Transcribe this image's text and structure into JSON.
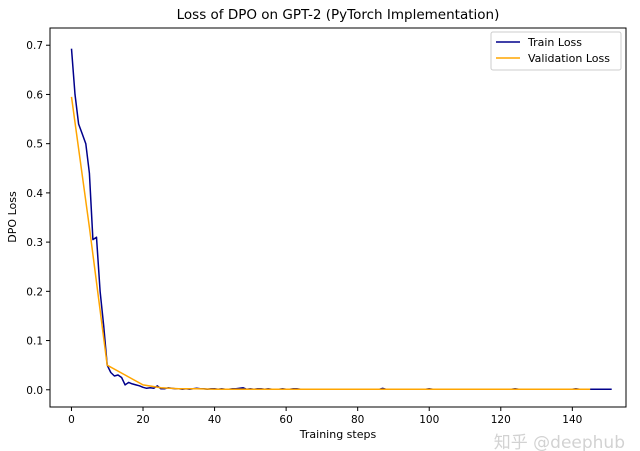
{
  "chart_data": {
    "type": "line",
    "title": "Loss of DPO on GPT-2 (PyTorch Implementation)",
    "xlabel": "Training steps",
    "ylabel": "DPO Loss",
    "xlim": [
      -6,
      155
    ],
    "ylim": [
      -0.035,
      0.735
    ],
    "xticks": [
      0,
      20,
      40,
      60,
      80,
      100,
      120,
      140
    ],
    "yticks": [
      0.0,
      0.1,
      0.2,
      0.3,
      0.4,
      0.5,
      0.6,
      0.7
    ],
    "xtick_labels": [
      "0",
      "20",
      "40",
      "60",
      "80",
      "100",
      "120",
      "140"
    ],
    "ytick_labels": [
      "0.0",
      "0.1",
      "0.2",
      "0.3",
      "0.4",
      "0.5",
      "0.6",
      "0.7"
    ],
    "grid": false,
    "legend": "top-right",
    "series": [
      {
        "name": "Train Loss",
        "color": "#00008b",
        "x_start": 0,
        "x_step": 1,
        "values": [
          0.693,
          0.6,
          0.54,
          0.52,
          0.5,
          0.44,
          0.305,
          0.31,
          0.2,
          0.13,
          0.05,
          0.035,
          0.028,
          0.03,
          0.025,
          0.01,
          0.015,
          0.012,
          0.01,
          0.008,
          0.005,
          0.003,
          0.004,
          0.003,
          0.008,
          0.002,
          0.002,
          0.004,
          0.003,
          0.002,
          0.002,
          0.001,
          0.002,
          0.001,
          0.002,
          0.003,
          0.002,
          0.002,
          0.001,
          0.002,
          0.002,
          0.001,
          0.002,
          0.001,
          0.001,
          0.002,
          0.002,
          0.003,
          0.004,
          0.001,
          0.002,
          0.001,
          0.002,
          0.002,
          0.001,
          0.002,
          0.001,
          0.001,
          0.001,
          0.002,
          0.001,
          0.001,
          0.002,
          0.002,
          0.001,
          0.001,
          0.001,
          0.001,
          0.001,
          0.001,
          0.001,
          0.001,
          0.001,
          0.001,
          0.001,
          0.001,
          0.001,
          0.001,
          0.001,
          0.001,
          0.001,
          0.001,
          0.001,
          0.001,
          0.001,
          0.001,
          0.001,
          0.003,
          0.001,
          0.001,
          0.001,
          0.001,
          0.001,
          0.001,
          0.001,
          0.001,
          0.001,
          0.001,
          0.001,
          0.001,
          0.002,
          0.001,
          0.001,
          0.001,
          0.001,
          0.001,
          0.001,
          0.001,
          0.001,
          0.001,
          0.001,
          0.001,
          0.001,
          0.001,
          0.001,
          0.001,
          0.001,
          0.001,
          0.001,
          0.001,
          0.001,
          0.001,
          0.001,
          0.001,
          0.002,
          0.001,
          0.001,
          0.001,
          0.001,
          0.001,
          0.001,
          0.001,
          0.001,
          0.001,
          0.001,
          0.001,
          0.001,
          0.001,
          0.001,
          0.001,
          0.001,
          0.002,
          0.001,
          0.001,
          0.001,
          0.001,
          0.001,
          0.001,
          0.001,
          0.001,
          0.001,
          0.001
        ]
      },
      {
        "name": "Validation Loss",
        "color": "#ffa500",
        "x_start": 0,
        "x_step": 5,
        "values": [
          0.595,
          0.33,
          0.05,
          0.03,
          0.01,
          0.004,
          0.002,
          0.002,
          0.001,
          0.001,
          0.001,
          0.001,
          0.001,
          0.001,
          0.001,
          0.001,
          0.001,
          0.001,
          0.001,
          0.001,
          0.001,
          0.001,
          0.001,
          0.001,
          0.001,
          0.001,
          0.001,
          0.001,
          0.001,
          0.001
        ]
      }
    ]
  },
  "watermark": "知乎 @deephub"
}
